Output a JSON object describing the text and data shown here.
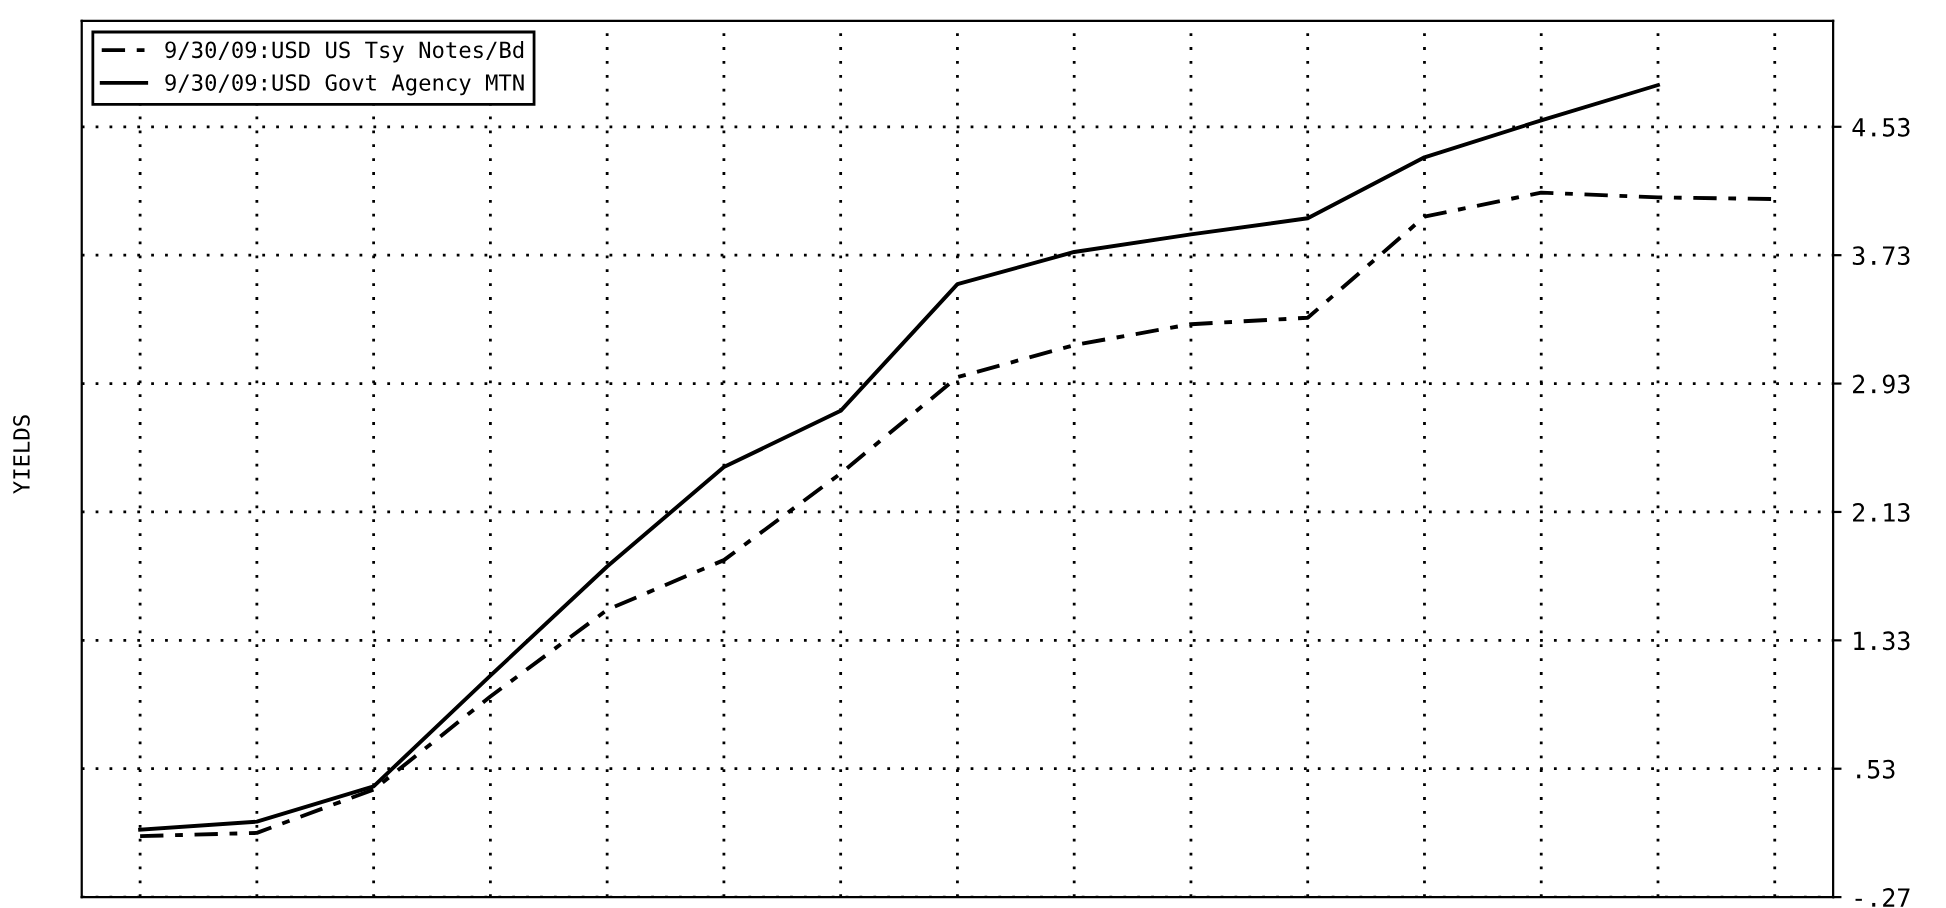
{
  "chart_data": {
    "type": "line",
    "ylabel": "YIELDS",
    "categories": [
      null,
      null,
      null,
      null,
      null,
      null,
      null,
      null,
      null,
      null,
      null,
      null,
      null,
      null,
      null
    ],
    "series": [
      {
        "name": "9/30/09:USD US Tsy Notes/Bd",
        "color": "#000000",
        "line_style": "dashed",
        "values": [
          0.11,
          0.13,
          0.4,
          0.98,
          1.52,
          1.83,
          2.37,
          2.97,
          3.17,
          3.3,
          3.34,
          3.97,
          4.12,
          4.09,
          4.08
        ]
      },
      {
        "name": "9/30/09:USD Govt Agency MTN",
        "color": "#000000",
        "line_style": "solid",
        "values": [
          0.15,
          0.2,
          0.42,
          1.11,
          1.79,
          2.41,
          2.76,
          3.55,
          3.75,
          3.86,
          3.96,
          4.34,
          4.57,
          4.79,
          null
        ]
      }
    ],
    "ylim": [
      -0.27,
      5.19
    ],
    "yticks": [
      {
        "value": -0.27,
        "label": "-.27"
      },
      {
        "value": 0.53,
        "label": ".53"
      },
      1.33,
      2.13,
      2.93,
      3.73,
      4.53
    ],
    "grid": true,
    "legend": "top left",
    "marker": "none",
    "tick_labels": "y"
  }
}
